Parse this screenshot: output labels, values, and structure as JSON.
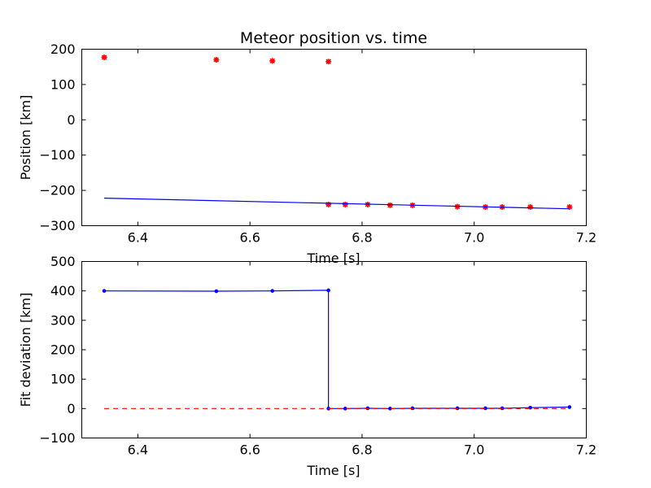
{
  "chart_data": [
    {
      "type": "scatter",
      "title": "Meteor position vs. time",
      "xlabel": "Time [s]",
      "ylabel": "Position [km]",
      "xlim": [
        6.3,
        7.2
      ],
      "ylim": [
        -300,
        200
      ],
      "xticks": [
        "6.4",
        "6.6",
        "6.8",
        "7.0",
        "7.2"
      ],
      "xtick_values": [
        6.4,
        6.6,
        6.8,
        7.0,
        7.2
      ],
      "yticks": [
        "−300",
        "−200",
        "−100",
        "0",
        "100",
        "200"
      ],
      "ytick_values": [
        -300,
        -200,
        -100,
        0,
        100,
        200
      ],
      "grid": false,
      "series": [
        {
          "style": "markers",
          "marker": "star",
          "color": "#ff0000",
          "x": [
            6.34,
            6.54,
            6.64,
            6.74,
            6.74,
            6.77,
            6.81,
            6.85,
            6.89,
            6.97,
            7.02,
            7.05,
            7.1,
            7.17
          ],
          "y": [
            177,
            170,
            167,
            165,
            -240,
            -240,
            -240,
            -242,
            -242,
            -246,
            -247,
            -247,
            -247,
            -247
          ]
        },
        {
          "style": "line",
          "color": "#0000ff",
          "x": [
            6.34,
            7.17
          ],
          "y": [
            -222,
            -252
          ]
        }
      ]
    },
    {
      "type": "line",
      "title": "",
      "xlabel": "Time [s]",
      "ylabel": "Fit deviation [km]",
      "xlim": [
        6.3,
        7.2
      ],
      "ylim": [
        -100,
        500
      ],
      "xticks": [
        "6.4",
        "6.6",
        "6.8",
        "7.0",
        "7.2"
      ],
      "xtick_values": [
        6.4,
        6.6,
        6.8,
        7.0,
        7.2
      ],
      "yticks": [
        "−100",
        "0",
        "100",
        "200",
        "300",
        "400",
        "500"
      ],
      "ytick_values": [
        -100,
        0,
        100,
        200,
        300,
        400,
        500
      ],
      "grid": false,
      "series": [
        {
          "style": "line-markers",
          "marker": "dot",
          "color": "#0000ff",
          "x": [
            6.34,
            6.54,
            6.64,
            6.74,
            6.74,
            6.77,
            6.81,
            6.85,
            6.89,
            6.97,
            7.02,
            7.05,
            7.1,
            7.17
          ],
          "y": [
            400,
            399,
            400,
            402,
            0,
            0,
            1,
            0,
            1,
            1,
            1,
            1,
            3,
            5
          ]
        },
        {
          "style": "dashed",
          "color": "#ff0000",
          "x": [
            6.34,
            7.17
          ],
          "y": [
            0,
            0
          ]
        }
      ]
    }
  ]
}
